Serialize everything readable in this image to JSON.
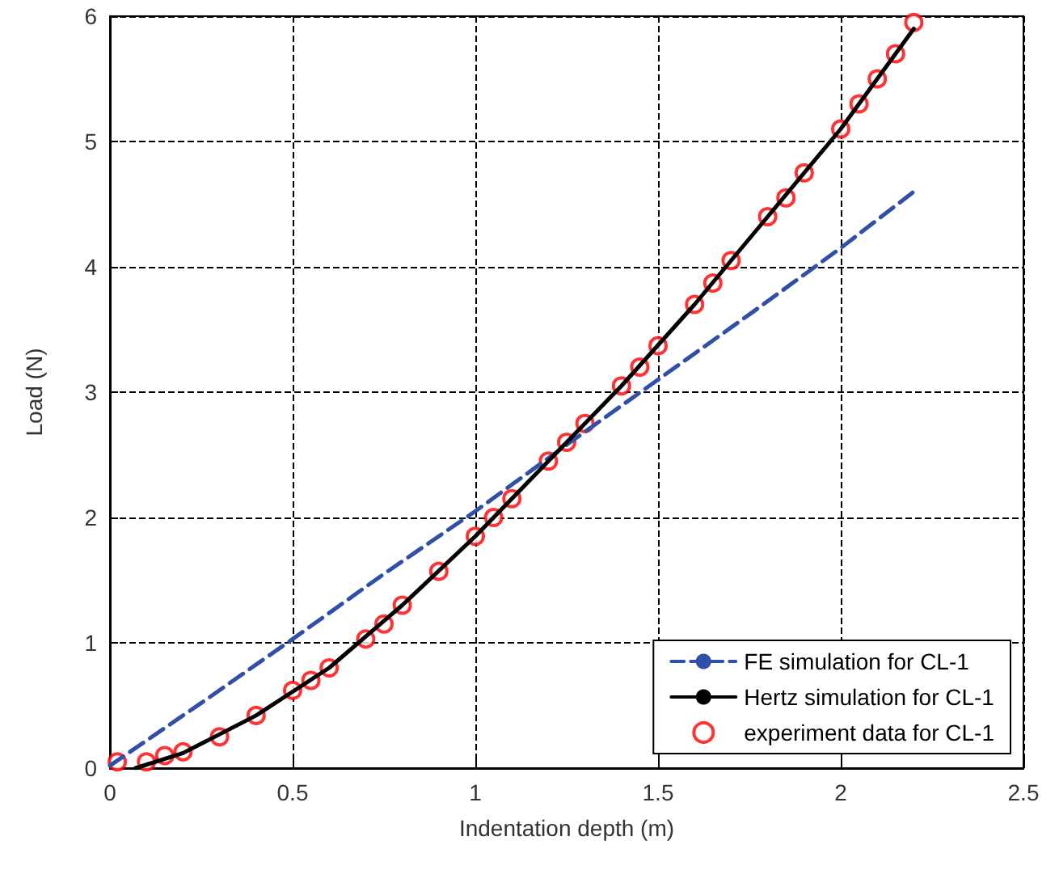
{
  "chart_data": {
    "type": "line",
    "xlabel": "Indentation depth (m)",
    "ylabel": "Load (N)",
    "xlim": [
      0,
      2.5
    ],
    "xticks": [
      0,
      0.5,
      1,
      1.5,
      2,
      2.5
    ],
    "ylim": [
      0,
      6
    ],
    "yticks": [
      0,
      1,
      2,
      3,
      4,
      5,
      6
    ],
    "grid": true,
    "legend": "bottom right",
    "series": [
      {
        "name": "FE simulation for CL-1",
        "color": "#3050a8",
        "line_style": "dashed",
        "x": [
          0,
          0.25,
          0.5,
          0.75,
          1,
          1.25,
          1.5,
          1.75,
          2,
          2.2
        ],
        "values": [
          0.02,
          0.52,
          1.03,
          1.55,
          2.05,
          2.58,
          3.1,
          3.62,
          4.15,
          4.6
        ]
      },
      {
        "name": "Hertz simulation for CL-1",
        "color": "#000000",
        "line_style": "solid",
        "x": [
          0.07,
          0.2,
          0.4,
          0.6,
          0.8,
          1,
          1.2,
          1.4,
          1.6,
          1.8,
          2,
          2.2
        ],
        "values": [
          0,
          0.12,
          0.42,
          0.8,
          1.3,
          1.85,
          2.45,
          3.05,
          3.7,
          4.4,
          5.1,
          5.9
        ]
      },
      {
        "name": "experiment data for CL-1",
        "type": "scatter",
        "color": "#ff0000",
        "marker": "circle",
        "x": [
          0.02,
          0.1,
          0.15,
          0.2,
          0.3,
          0.4,
          0.5,
          0.55,
          0.6,
          0.7,
          0.75,
          0.8,
          0.9,
          1,
          1.05,
          1.1,
          1.2,
          1.25,
          1.3,
          1.4,
          1.45,
          1.5,
          1.6,
          1.65,
          1.7,
          1.8,
          1.85,
          1.9,
          2,
          2.05,
          2.1,
          2.15,
          2.2
        ],
        "values": [
          0.05,
          0.05,
          0.1,
          0.13,
          0.25,
          0.42,
          0.62,
          0.7,
          0.8,
          1.03,
          1.15,
          1.3,
          1.57,
          1.85,
          2.0,
          2.15,
          2.45,
          2.6,
          2.75,
          3.05,
          3.2,
          3.37,
          3.7,
          3.87,
          4.05,
          4.4,
          4.55,
          4.75,
          5.1,
          5.3,
          5.5,
          5.7,
          5.95
        ]
      }
    ]
  }
}
